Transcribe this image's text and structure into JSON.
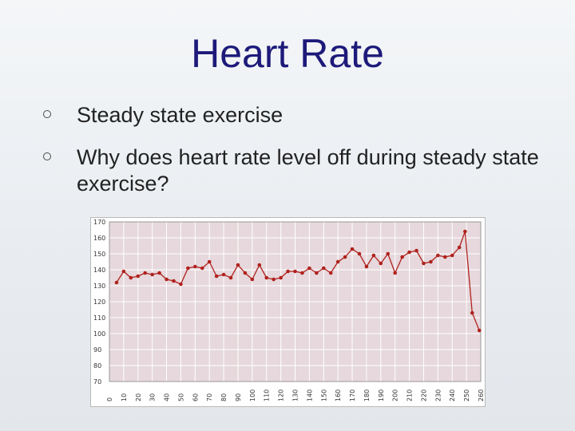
{
  "slide": {
    "title": "Heart Rate",
    "bullets": [
      {
        "text": "Steady state exercise"
      },
      {
        "text": "Why does heart rate level off during steady state exercise?"
      }
    ]
  },
  "colors": {
    "plot_background": "#e6d8dc",
    "grid": "#ffffff",
    "series": "#b0221e",
    "title": "#1d1a7a"
  },
  "chart_data": {
    "type": "line",
    "title": "",
    "xlabel": "",
    "ylabel": "",
    "xlim": [
      0,
      260
    ],
    "ylim": [
      70,
      170
    ],
    "x_ticks": [
      0,
      10,
      20,
      30,
      40,
      50,
      60,
      70,
      80,
      90,
      100,
      110,
      120,
      130,
      140,
      150,
      160,
      170,
      180,
      190,
      200,
      210,
      220,
      230,
      240,
      250,
      260
    ],
    "y_ticks": [
      70,
      80,
      90,
      100,
      110,
      120,
      130,
      140,
      150,
      160,
      170
    ],
    "grid": true,
    "series": [
      {
        "points": [
          [
            5,
            132
          ],
          [
            10,
            139
          ],
          [
            15,
            135
          ],
          [
            20,
            136
          ],
          [
            25,
            138
          ],
          [
            30,
            137
          ],
          [
            35,
            138
          ],
          [
            40,
            134
          ],
          [
            45,
            133
          ],
          [
            50,
            131
          ],
          [
            55,
            141
          ],
          [
            60,
            142
          ],
          [
            65,
            141
          ],
          [
            70,
            145
          ],
          [
            75,
            136
          ],
          [
            80,
            137
          ],
          [
            85,
            135
          ],
          [
            90,
            143
          ],
          [
            95,
            138
          ],
          [
            100,
            134
          ],
          [
            105,
            143
          ],
          [
            110,
            135
          ],
          [
            115,
            134
          ],
          [
            120,
            135
          ],
          [
            125,
            139
          ],
          [
            130,
            139
          ],
          [
            135,
            138
          ],
          [
            140,
            141
          ],
          [
            145,
            138
          ],
          [
            150,
            141
          ],
          [
            155,
            138
          ],
          [
            160,
            145
          ],
          [
            165,
            148
          ],
          [
            170,
            153
          ],
          [
            175,
            150
          ],
          [
            180,
            142
          ],
          [
            185,
            149
          ],
          [
            190,
            144
          ],
          [
            195,
            150
          ],
          [
            200,
            138
          ],
          [
            205,
            148
          ],
          [
            210,
            151
          ],
          [
            215,
            152
          ],
          [
            220,
            144
          ],
          [
            225,
            145
          ],
          [
            230,
            149
          ],
          [
            235,
            148
          ],
          [
            240,
            149
          ],
          [
            245,
            154
          ],
          [
            249,
            164
          ],
          [
            254,
            113
          ],
          [
            259,
            102
          ]
        ]
      }
    ]
  }
}
